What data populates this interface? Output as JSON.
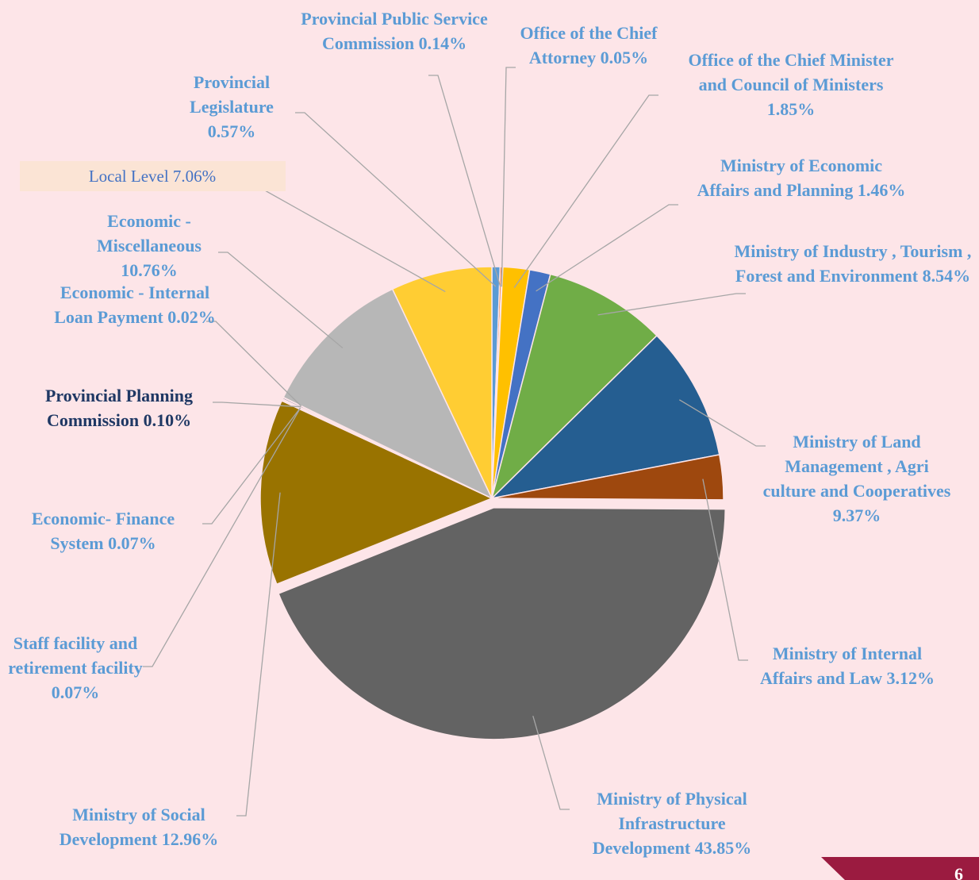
{
  "chart_data": {
    "type": "pie",
    "categories": [
      "Provincial Legislature",
      "Provincial Public Service Commission",
      "Office of the Chief Attorney",
      "Office of the Chief Minister and Council of Ministers",
      "Ministry of Economic Affairs and Planning",
      "Ministry of Industry , Tourism , Forest and Environment",
      "Ministry of Land Management , Agri culture and Cooperatives",
      "Ministry of Internal Affairs and Law",
      "Ministry of Physical Infrastructure Development",
      "Ministry of Social Development",
      "Staff facility and retirement facility",
      "Economic- Finance System",
      "Provincial Planning Commission",
      "Economic - Internal Loan Payment",
      "Economic - Miscellaneous",
      "Local Level"
    ],
    "values": [
      0.57,
      0.14,
      0.05,
      1.85,
      1.46,
      8.54,
      9.37,
      3.12,
      43.85,
      12.96,
      0.07,
      0.07,
      0.1,
      0.02,
      10.76,
      7.06
    ],
    "value_labels": [
      "0.57%",
      "0.14%",
      "0.05%",
      "1.85%",
      "1.46%",
      "8.54%",
      "9.37%",
      "3.12%",
      "43.85%",
      "12.96%",
      "0.07%",
      "0.07%",
      "0.10%",
      "0.02%",
      "10.76%",
      "7.06%"
    ],
    "colors": [
      "#5b9bd5",
      "#ed7d31",
      "#a5a5a5",
      "#ffc000",
      "#4472c4",
      "#70ad47",
      "#255e91",
      "#9e480e",
      "#636363",
      "#997300",
      "#264478",
      "#43682b",
      "#1f3864",
      "#f1975a",
      "#b7b7b7",
      "#ffcd33"
    ]
  },
  "page_number": "6"
}
